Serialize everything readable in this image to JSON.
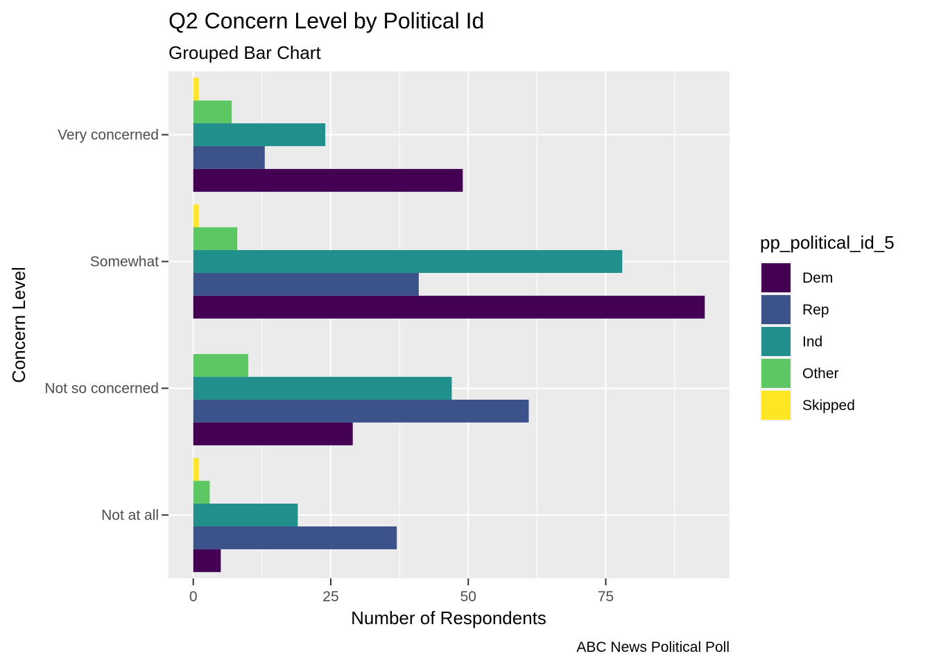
{
  "chart_data": {
    "type": "bar",
    "orientation": "horizontal",
    "title": "Q2 Concern Level by Political Id",
    "subtitle": "Grouped Bar Chart",
    "xlabel": "Number of Respondents",
    "ylabel": "Concern Level",
    "caption": "ABC News Political Poll",
    "categories": [
      "Very concerned",
      "Somewhat",
      "Not so concerned",
      "Not at all"
    ],
    "x_ticks": [
      "0",
      "25",
      "50",
      "75"
    ],
    "xlim": [
      -4.5,
      97.5
    ],
    "grid": true,
    "legend": {
      "title": "pp_political_id_5",
      "position": "right"
    },
    "series": [
      {
        "name": "Dem",
        "color": "#440154",
        "values": [
          49,
          93,
          29,
          5
        ]
      },
      {
        "name": "Rep",
        "color": "#3B528B",
        "values": [
          13,
          41,
          61,
          37
        ]
      },
      {
        "name": "Ind",
        "color": "#21908C",
        "values": [
          24,
          78,
          47,
          19
        ]
      },
      {
        "name": "Other",
        "color": "#5DC863",
        "values": [
          7,
          8,
          10,
          3
        ]
      },
      {
        "name": "Skipped",
        "color": "#FDE725",
        "values": [
          1,
          1,
          null,
          1
        ]
      }
    ]
  }
}
